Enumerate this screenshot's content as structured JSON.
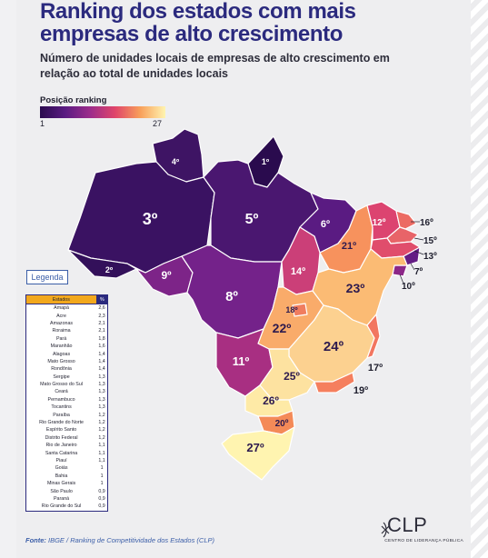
{
  "title": "Ranking dos estados com mais empresas de alto crescimento",
  "subtitle": "Número de unidades locais de empresas de alto crescimento em relação ao total de unidades locais",
  "scale": {
    "title": "Posição ranking",
    "min": "1",
    "max": "27",
    "colors": [
      "#2a0b4e",
      "#5a1b82",
      "#9c2c8b",
      "#e0456a",
      "#f8a05b",
      "#fff4b0"
    ]
  },
  "map_labels": [
    {
      "state": "Roraima",
      "rank": "4º"
    },
    {
      "state": "Amapá",
      "rank": "1º"
    },
    {
      "state": "Amazonas",
      "rank": "3º"
    },
    {
      "state": "Pará",
      "rank": "5º"
    },
    {
      "state": "Maranhão",
      "rank": "6º"
    },
    {
      "state": "Acre",
      "rank": "2º"
    },
    {
      "state": "Rondônia",
      "rank": "9º"
    },
    {
      "state": "Mato Grosso",
      "rank": "8º"
    },
    {
      "state": "Tocantins",
      "rank": "14º"
    },
    {
      "state": "Piauí",
      "rank": "21º"
    },
    {
      "state": "Ceará",
      "rank": "12º"
    },
    {
      "state": "Rio Grande do Norte",
      "rank": "16º"
    },
    {
      "state": "Paraíba",
      "rank": "15º"
    },
    {
      "state": "Pernambuco",
      "rank": "13º"
    },
    {
      "state": "Alagoas",
      "rank": "7º"
    },
    {
      "state": "Sergipe",
      "rank": "10º"
    },
    {
      "state": "Bahia",
      "rank": "23º"
    },
    {
      "state": "Distrito Federal",
      "rank": "18º"
    },
    {
      "state": "Goiás",
      "rank": "22º"
    },
    {
      "state": "Minas Gerais",
      "rank": "24º"
    },
    {
      "state": "Espírito Santo",
      "rank": "17º"
    },
    {
      "state": "Mato Grosso do Sul",
      "rank": "11º"
    },
    {
      "state": "São Paulo",
      "rank": "25º"
    },
    {
      "state": "Rio de Janeiro",
      "rank": "19º"
    },
    {
      "state": "Paraná",
      "rank": "26º"
    },
    {
      "state": "Santa Catarina",
      "rank": "20º"
    },
    {
      "state": "Rio Grande do Sul",
      "rank": "27º"
    }
  ],
  "legend_button": "Legenda",
  "table": {
    "headers": [
      "Estados",
      "%"
    ],
    "rows": [
      [
        "Amapá",
        "2,6"
      ],
      [
        "Acre",
        "2,3"
      ],
      [
        "Amazonas",
        "2,1"
      ],
      [
        "Roraima",
        "2,1"
      ],
      [
        "Pará",
        "1,8"
      ],
      [
        "Maranhão",
        "1,6"
      ],
      [
        "Alagoas",
        "1,4"
      ],
      [
        "Mato Grosso",
        "1,4"
      ],
      [
        "Rondônia",
        "1,4"
      ],
      [
        "Sergipe",
        "1,3"
      ],
      [
        "Mato Grosso do Sul",
        "1,3"
      ],
      [
        "Ceará",
        "1,3"
      ],
      [
        "Pernambuco",
        "1,3"
      ],
      [
        "Tocantins",
        "1,3"
      ],
      [
        "Paraíba",
        "1,2"
      ],
      [
        "Rio Grande do Norte",
        "1,2"
      ],
      [
        "Espírito Santo",
        "1,2"
      ],
      [
        "Distrito Federal",
        "1,2"
      ],
      [
        "Rio de Janeiro",
        "1,1"
      ],
      [
        "Santa Catarina",
        "1,1"
      ],
      [
        "Piauí",
        "1,1"
      ],
      [
        "Goiás",
        "1"
      ],
      [
        "Bahia",
        "1"
      ],
      [
        "Minas Gerais",
        "1"
      ],
      [
        "São Paulo",
        "0,9"
      ],
      [
        "Paraná",
        "0,9"
      ],
      [
        "Rio Grande do Sul",
        "0,9"
      ]
    ]
  },
  "source": {
    "label": "Fonte:",
    "text": "IBGE / Ranking de Competitividade dos Estados (CLP)"
  },
  "logo": {
    "text": "CLP",
    "subtitle": "CENTRO DE LIDERANÇA PÚBLICA"
  }
}
